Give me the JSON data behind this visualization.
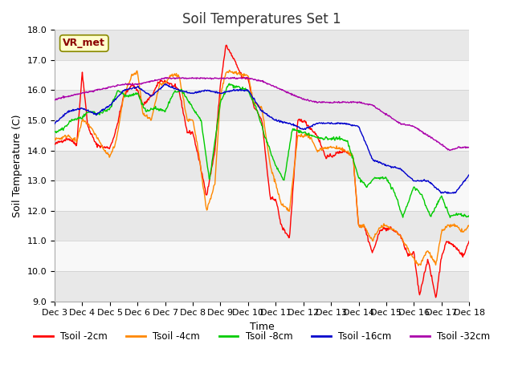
{
  "title": "Soil Temperatures Set 1",
  "xlabel": "Time",
  "ylabel": "Soil Temperature (C)",
  "ylim": [
    9.0,
    18.0
  ],
  "yticks": [
    9.0,
    10.0,
    11.0,
    12.0,
    13.0,
    14.0,
    15.0,
    16.0,
    17.0,
    18.0
  ],
  "xtick_labels": [
    "Dec 3",
    "Dec 4",
    "Dec 5",
    "Dec 6",
    "Dec 7",
    "Dec 8",
    "Dec 9",
    "Dec 10",
    "Dec 11",
    "Dec 12",
    "Dec 13",
    "Dec 14",
    "Dec 15",
    "Dec 16",
    "Dec 17",
    "Dec 18"
  ],
  "series_colors": [
    "#ff0000",
    "#ff8800",
    "#00cc00",
    "#0000cc",
    "#aa00aa"
  ],
  "series_labels": [
    "Tsoil -2cm",
    "Tsoil -4cm",
    "Tsoil -8cm",
    "Tsoil -16cm",
    "Tsoil -32cm"
  ],
  "annotation_text": "VR_met",
  "bg_color": "#ffffff",
  "plot_bg_color": "#ffffff",
  "band_color_light": "#e8e8e8",
  "band_color_white": "#f8f8f8",
  "title_fontsize": 12,
  "label_fontsize": 9,
  "tick_fontsize": 8,
  "n_points": 720
}
